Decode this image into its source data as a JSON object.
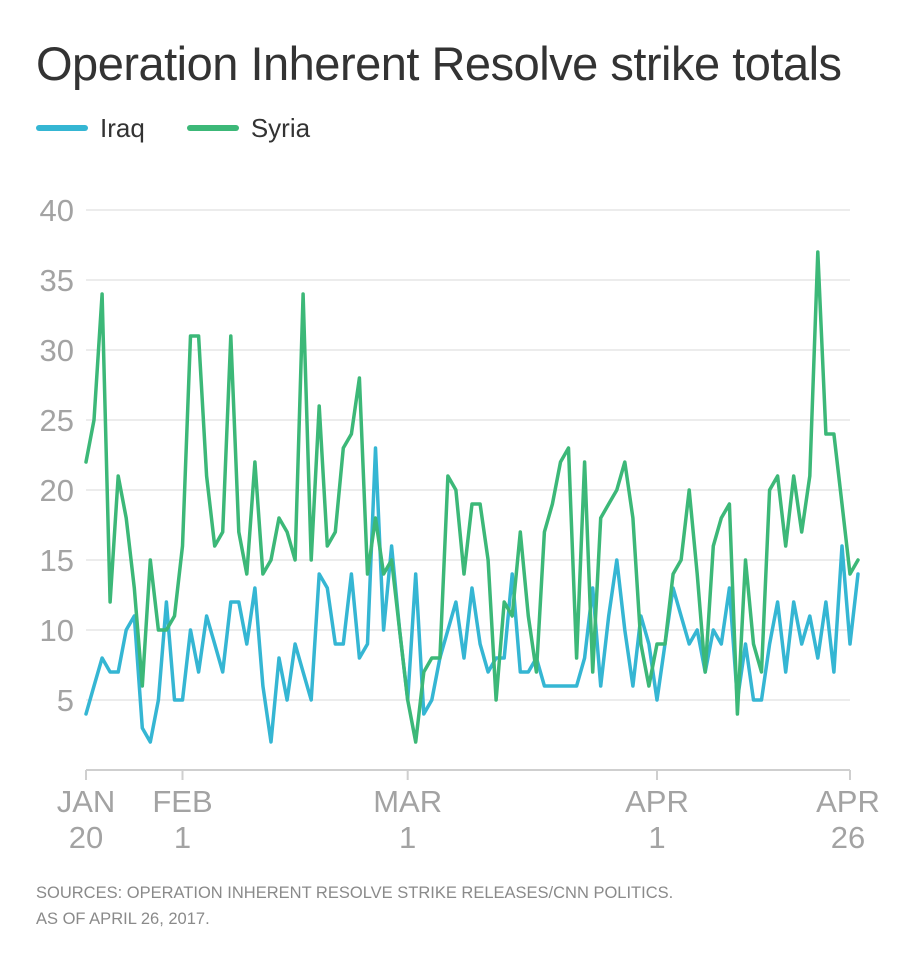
{
  "chart_data": {
    "type": "line",
    "title": "Operation Inherent Resolve strike totals",
    "xlabel": "",
    "ylabel": "",
    "ylim": [
      0,
      40
    ],
    "xlim": [
      0,
      95
    ],
    "yticks": [
      5,
      10,
      15,
      20,
      25,
      30,
      35,
      40
    ],
    "grid": true,
    "legend_position": "top-left",
    "xticks": [
      {
        "day": 0,
        "line1": "JAN",
        "line2": "20"
      },
      {
        "day": 12,
        "line1": "FEB",
        "line2": "1"
      },
      {
        "day": 40,
        "line1": "MAR",
        "line2": "1"
      },
      {
        "day": 71,
        "line1": "APR",
        "line2": "1"
      },
      {
        "day": 95,
        "line1": "APR",
        "line2": "26"
      }
    ],
    "series": [
      {
        "name": "Iraq",
        "color": "#35b6d3",
        "values": [
          4,
          6,
          8,
          7,
          7,
          10,
          11,
          3,
          2,
          5,
          12,
          5,
          5,
          10,
          7,
          11,
          9,
          7,
          12,
          12,
          9,
          13,
          6,
          2,
          8,
          5,
          9,
          7,
          5,
          14,
          13,
          9,
          9,
          14,
          8,
          9,
          23,
          10,
          16,
          10,
          5,
          14,
          4,
          5,
          8,
          10,
          12,
          8,
          13,
          9,
          7,
          8,
          8,
          14,
          7,
          7,
          8,
          6,
          6,
          6,
          6,
          6,
          8,
          13,
          6,
          11,
          15,
          10,
          6,
          11,
          9,
          5,
          9,
          13,
          11,
          9,
          10,
          7,
          10,
          9,
          13,
          5,
          9,
          5,
          5,
          9,
          12,
          7,
          12,
          9,
          11,
          8,
          12,
          7,
          16,
          9,
          14
        ]
      },
      {
        "name": "Syria",
        "color": "#3cb878",
        "values": [
          22,
          25,
          34,
          12,
          21,
          18,
          13,
          6,
          15,
          10,
          10,
          11,
          16,
          31,
          31,
          21,
          16,
          17,
          31,
          17,
          14,
          22,
          14,
          15,
          18,
          17,
          15,
          34,
          15,
          26,
          16,
          17,
          23,
          24,
          28,
          14,
          18,
          14,
          15,
          10,
          5,
          2,
          7,
          8,
          8,
          21,
          20,
          14,
          19,
          19,
          15,
          5,
          12,
          11,
          17,
          11,
          7,
          17,
          19,
          22,
          23,
          8,
          22,
          7,
          18,
          19,
          20,
          22,
          18,
          9,
          6,
          9,
          9,
          14,
          15,
          20,
          14,
          7,
          16,
          18,
          19,
          4,
          15,
          9,
          7,
          20,
          21,
          16,
          21,
          17,
          21,
          37,
          24,
          24,
          19,
          14,
          15
        ]
      }
    ]
  },
  "footer": {
    "line1": "SOURCES: OPERATION INHERENT RESOLVE STRIKE RELEASES/CNN POLITICS.",
    "line2": "AS OF APRIL 26, 2017."
  }
}
